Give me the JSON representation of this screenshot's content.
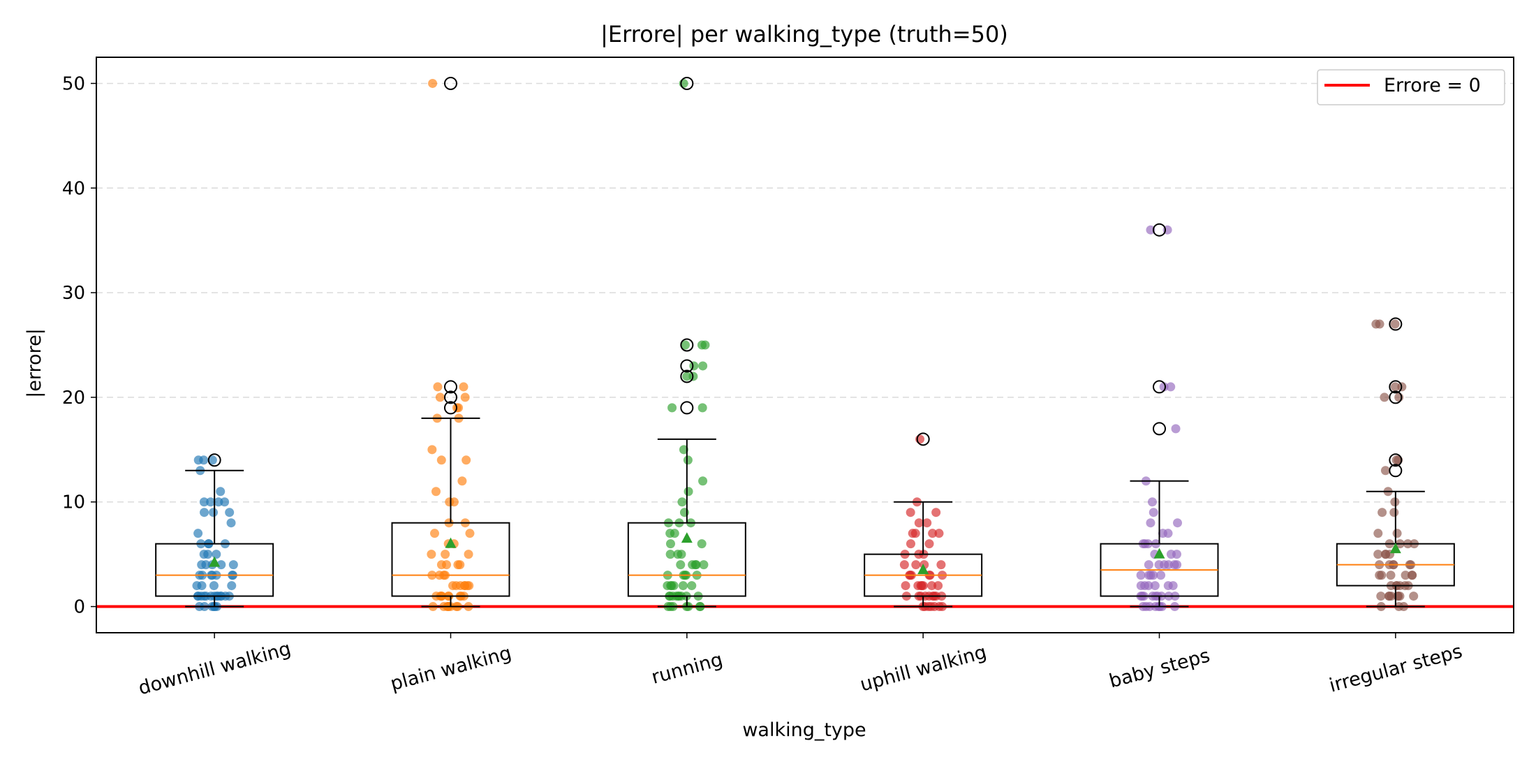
{
  "chart_data": {
    "type": "box",
    "title": "|Errore| per walking_type (truth=50)",
    "xlabel": "walking_type",
    "ylabel": "|errore|",
    "ylim": [
      -2.5,
      52.5
    ],
    "yticks": [
      0,
      10,
      20,
      30,
      40,
      50
    ],
    "grid": "y-dashed",
    "legend": {
      "position": "top-right",
      "entries": [
        {
          "label": "Errore = 0",
          "color": "#ff0000"
        }
      ]
    },
    "reference_line": {
      "y": 0,
      "color": "#ff0000",
      "label": "Errore = 0"
    },
    "categories": [
      "downhill walking",
      "plain walking",
      "running",
      "uphill walking",
      "baby steps",
      "irregular steps"
    ],
    "colors": [
      "#1f77b4",
      "#ff7f0e",
      "#2ca02c",
      "#d62728",
      "#9467bd",
      "#8c564b"
    ],
    "median_color": "#ff7f0e",
    "mean_color": "#2ca02c",
    "boxes": [
      {
        "category": "downhill walking",
        "q1": 1,
        "median": 3,
        "q3": 6,
        "whisker_low": 0,
        "whisker_high": 13,
        "mean": 4.2,
        "outliers": [
          14
        ]
      },
      {
        "category": "plain walking",
        "q1": 1,
        "median": 3,
        "q3": 8,
        "whisker_low": 0,
        "whisker_high": 18,
        "mean": 6,
        "outliers": [
          19,
          20,
          21,
          50
        ]
      },
      {
        "category": "running",
        "q1": 1,
        "median": 3,
        "q3": 8,
        "whisker_low": 0,
        "whisker_high": 16,
        "mean": 6.5,
        "outliers": [
          19,
          22,
          23,
          25,
          50
        ]
      },
      {
        "category": "uphill walking",
        "q1": 1,
        "median": 3,
        "q3": 5,
        "whisker_low": 0,
        "whisker_high": 10,
        "mean": 3.5,
        "outliers": [
          16
        ]
      },
      {
        "category": "baby steps",
        "q1": 1,
        "median": 3.5,
        "q3": 6,
        "whisker_low": 0,
        "whisker_high": 12,
        "mean": 5,
        "outliers": [
          17,
          21,
          36
        ]
      },
      {
        "category": "irregular steps",
        "q1": 2,
        "median": 4,
        "q3": 6,
        "whisker_low": 0,
        "whisker_high": 11,
        "mean": 5.5,
        "outliers": [
          13,
          14,
          20,
          21,
          27
        ]
      }
    ],
    "points": [
      [
        0,
        0,
        0,
        0,
        0,
        0,
        1,
        1,
        1,
        1,
        1,
        1,
        1,
        1,
        1,
        1,
        1,
        1,
        1,
        2,
        2,
        2,
        2,
        3,
        3,
        3,
        3,
        3,
        3,
        3,
        4,
        4,
        4,
        4,
        4,
        5,
        5,
        5,
        6,
        6,
        6,
        6,
        7,
        8,
        9,
        9,
        9,
        10,
        10,
        10,
        10,
        11,
        13,
        14,
        14,
        14
      ],
      [
        0,
        0,
        0,
        0,
        0,
        0,
        0,
        0,
        0,
        1,
        1,
        1,
        1,
        1,
        1,
        1,
        1,
        1,
        2,
        2,
        2,
        2,
        2,
        2,
        2,
        3,
        3,
        3,
        3,
        4,
        4,
        4,
        4,
        5,
        5,
        5,
        6,
        6,
        7,
        7,
        8,
        8,
        10,
        10,
        11,
        12,
        14,
        14,
        15,
        18,
        18,
        19,
        19,
        20,
        20,
        21,
        21,
        50
      ],
      [
        0,
        0,
        0,
        0,
        0,
        0,
        0,
        1,
        1,
        1,
        1,
        1,
        1,
        1,
        1,
        1,
        2,
        2,
        2,
        2,
        2,
        2,
        3,
        3,
        3,
        3,
        3,
        4,
        4,
        4,
        4,
        4,
        5,
        5,
        5,
        6,
        6,
        7,
        7,
        8,
        8,
        8,
        9,
        10,
        11,
        12,
        14,
        15,
        19,
        19,
        22,
        22,
        23,
        23,
        25,
        25,
        25,
        50
      ],
      [
        0,
        0,
        0,
        0,
        0,
        0,
        0,
        1,
        1,
        1,
        1,
        1,
        1,
        1,
        1,
        1,
        2,
        2,
        2,
        2,
        2,
        2,
        2,
        3,
        3,
        3,
        3,
        3,
        3,
        4,
        4,
        4,
        4,
        5,
        5,
        5,
        6,
        6,
        7,
        7,
        7,
        7,
        8,
        8,
        9,
        9,
        10,
        16
      ],
      [
        0,
        0,
        0,
        0,
        0,
        0,
        0,
        0,
        1,
        1,
        1,
        1,
        1,
        1,
        1,
        1,
        1,
        2,
        2,
        2,
        2,
        2,
        2,
        3,
        3,
        3,
        3,
        3,
        4,
        4,
        4,
        4,
        4,
        4,
        5,
        5,
        5,
        6,
        6,
        6,
        6,
        7,
        7,
        8,
        8,
        9,
        10,
        12,
        17,
        21,
        21,
        36,
        36
      ],
      [
        0,
        0,
        0,
        1,
        1,
        1,
        1,
        1,
        1,
        1,
        1,
        2,
        2,
        2,
        2,
        2,
        2,
        3,
        3,
        3,
        3,
        3,
        3,
        4,
        4,
        4,
        4,
        4,
        4,
        5,
        5,
        5,
        5,
        6,
        6,
        6,
        6,
        7,
        7,
        9,
        9,
        10,
        11,
        13,
        14,
        14,
        20,
        20,
        21,
        21,
        27,
        27,
        27
      ]
    ]
  }
}
